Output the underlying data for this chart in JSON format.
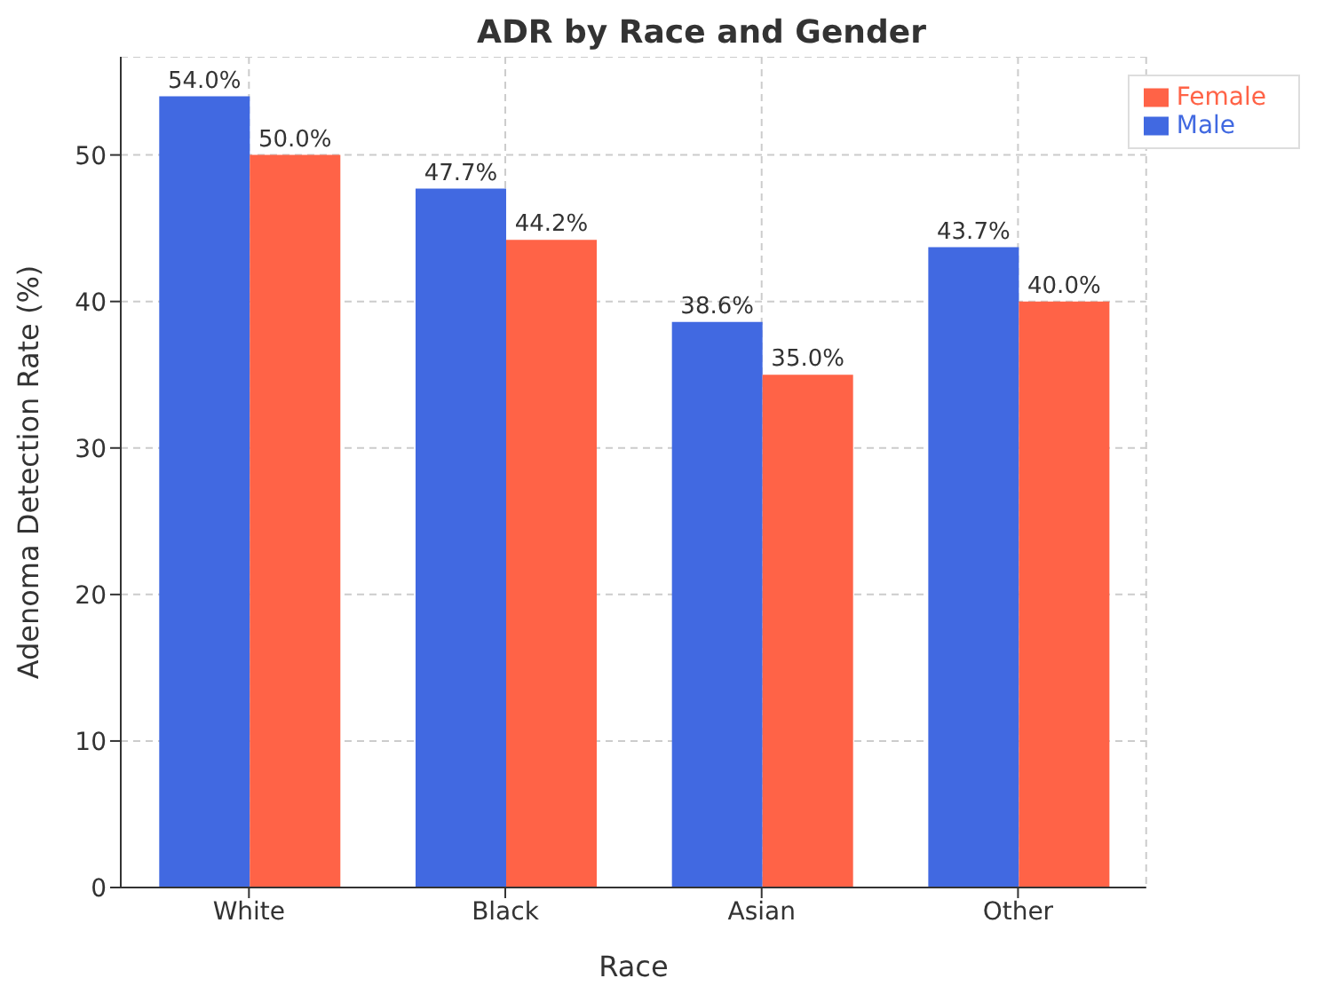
{
  "chart_data": {
    "type": "bar",
    "title": "ADR by Race and Gender",
    "xlabel": "Race",
    "ylabel": "Adenoma Detection Rate (%)",
    "categories": [
      "White",
      "Black",
      "Asian",
      "Other"
    ],
    "series": [
      {
        "name": "Male",
        "color": "#4169e1",
        "values": [
          54.0,
          47.7,
          38.6,
          43.7
        ],
        "value_labels": [
          "54.0%",
          "47.7%",
          "38.6%",
          "43.7%"
        ]
      },
      {
        "name": "Female",
        "color": "#ff6347",
        "values": [
          50.0,
          44.2,
          35.0,
          40.0
        ],
        "value_labels": [
          "50.0%",
          "44.2%",
          "35.0%",
          "40.0%"
        ]
      }
    ],
    "ylim": [
      0,
      56.7
    ],
    "yticks": [
      0,
      10,
      20,
      30,
      40,
      50
    ],
    "grid": true,
    "legend": "top right"
  }
}
